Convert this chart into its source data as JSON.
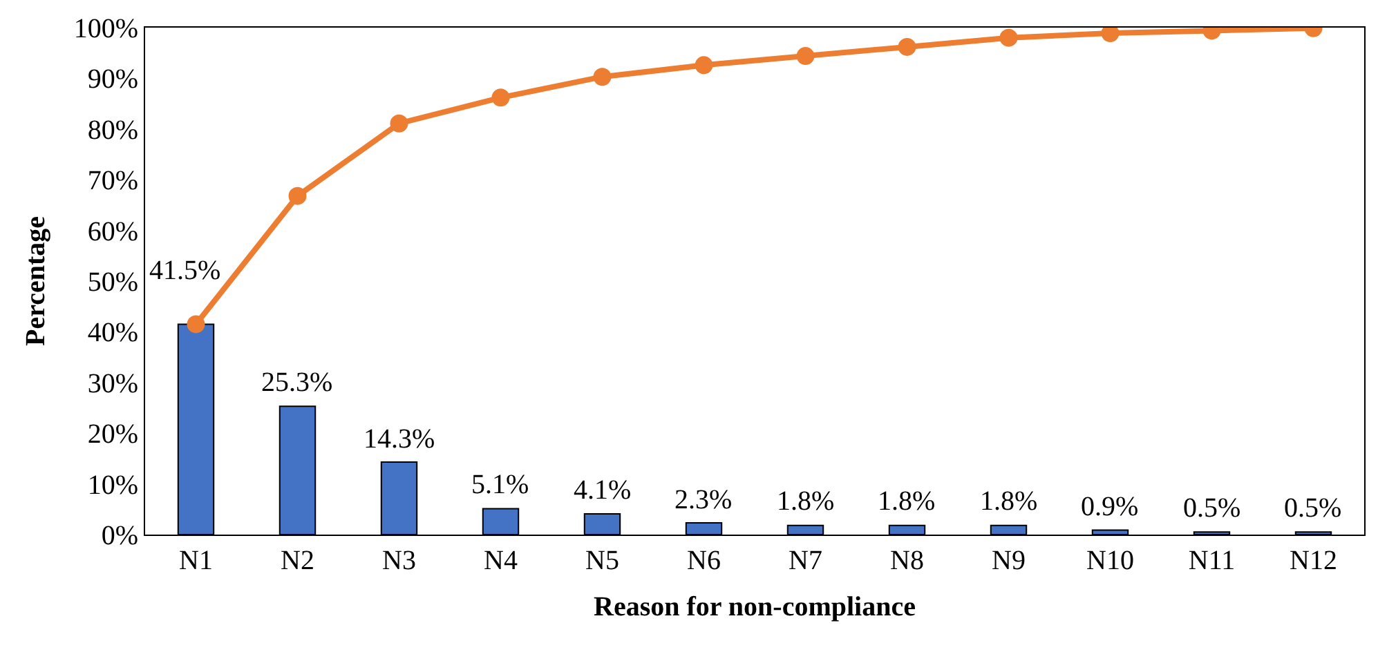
{
  "chart_data": {
    "type": "bar",
    "xlabel": "Reason for non-compliance",
    "ylabel": "Percentage",
    "categories": [
      "N1",
      "N2",
      "N3",
      "N4",
      "N5",
      "N6",
      "N7",
      "N8",
      "N9",
      "N10",
      "N11",
      "N12"
    ],
    "series": [
      {
        "color": "#4472c4",
        "values": [
          41.5,
          25.3,
          14.3,
          5.1,
          4.1,
          2.3,
          1.8,
          1.8,
          1.8,
          0.9,
          0.5,
          0.5
        ],
        "value_labels": [
          "41.5%",
          "25.3%",
          "14.3%",
          "5.1%",
          "4.1%",
          "2.3%",
          "1.8%",
          "1.8%",
          "1.8%",
          "0.9%",
          "0.5%",
          "0.5%"
        ]
      },
      {
        "type": "line",
        "color": "#ed7d31",
        "marker": "circle",
        "values": [
          41.5,
          66.8,
          81.1,
          86.2,
          90.3,
          92.6,
          94.4,
          96.2,
          98.0,
          98.9,
          99.4,
          99.9
        ]
      }
    ],
    "ylim": [
      0,
      100
    ],
    "yticks": [
      {
        "value": 0,
        "label": "0%"
      },
      {
        "value": 10,
        "label": "10%"
      },
      {
        "value": 20,
        "label": "20%"
      },
      {
        "value": 30,
        "label": "30%"
      },
      {
        "value": 40,
        "label": "40%"
      },
      {
        "value": 50,
        "label": "50%"
      },
      {
        "value": 60,
        "label": "60%"
      },
      {
        "value": 70,
        "label": "70%"
      },
      {
        "value": 80,
        "label": "80%"
      },
      {
        "value": 90,
        "label": "90%"
      },
      {
        "value": 100,
        "label": "100%"
      }
    ],
    "grid": false,
    "legend": false
  }
}
